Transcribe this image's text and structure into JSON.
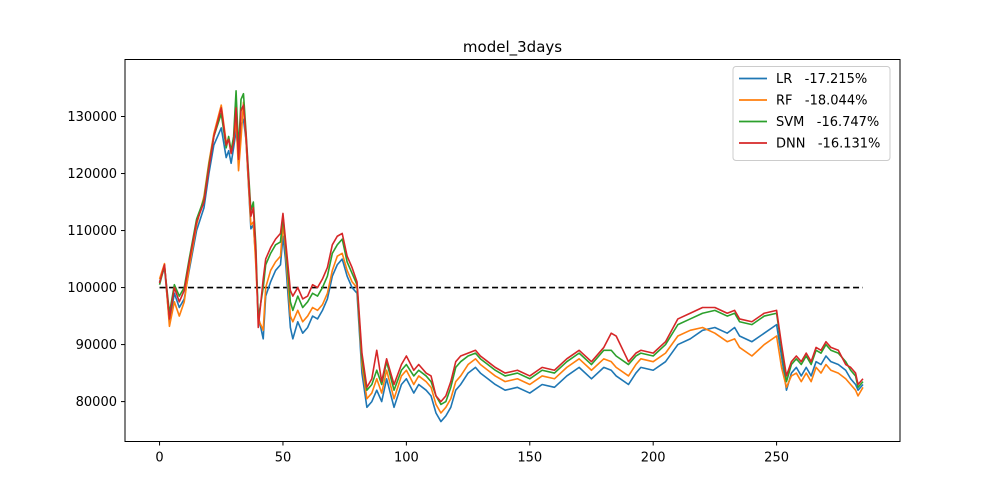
{
  "chart_data": {
    "type": "line",
    "title": "model_3days",
    "xlabel": "",
    "ylabel": "",
    "xlim": [
      -14,
      300
    ],
    "ylim": [
      73000,
      140000
    ],
    "xticks": [
      0,
      50,
      100,
      150,
      200,
      250
    ],
    "yticks": [
      80000,
      90000,
      100000,
      110000,
      120000,
      130000
    ],
    "grid": false,
    "legend_position": "top-right",
    "baseline": {
      "y": 100000,
      "x_range": [
        0,
        285
      ],
      "style": "dashed",
      "color": "#000000"
    },
    "series": [
      {
        "name": "LR   -17.215%",
        "color": "#1f77b4",
        "x": [
          0,
          2,
          4,
          6,
          8,
          10,
          12,
          15,
          18,
          20,
          22,
          25,
          27,
          28,
          29,
          30,
          31,
          32,
          33,
          34,
          35,
          37,
          38,
          39,
          40,
          42,
          43,
          45,
          47,
          49,
          50,
          51,
          53,
          54,
          56,
          58,
          60,
          62,
          64,
          66,
          68,
          70,
          72,
          74,
          76,
          78,
          80,
          82,
          84,
          86,
          88,
          90,
          92,
          95,
          98,
          100,
          103,
          105,
          108,
          110,
          112,
          114,
          116,
          118,
          120,
          122,
          125,
          128,
          130,
          133,
          136,
          140,
          145,
          150,
          155,
          160,
          165,
          170,
          175,
          180,
          183,
          185,
          190,
          193,
          195,
          200,
          205,
          210,
          215,
          220,
          225,
          230,
          233,
          235,
          240,
          245,
          250,
          252,
          254,
          256,
          258,
          260,
          262,
          264,
          266,
          268,
          270,
          272,
          275,
          278,
          280,
          282,
          283,
          285
        ],
        "values": [
          101000,
          103500,
          93800,
          99000,
          96500,
          98000,
          103000,
          110000,
          114000,
          120000,
          125000,
          128000,
          122800,
          124000,
          121800,
          124500,
          127500,
          123500,
          128500,
          129500,
          126000,
          110300,
          111000,
          105000,
          95000,
          91000,
          98500,
          101000,
          103000,
          104000,
          109000,
          105000,
          93000,
          91000,
          94000,
          92000,
          93000,
          95000,
          94500,
          96000,
          98000,
          102000,
          104000,
          105000,
          102000,
          100000,
          99000,
          85000,
          79000,
          80000,
          82000,
          80000,
          84000,
          79000,
          83000,
          84000,
          81500,
          83000,
          82000,
          81000,
          78000,
          76500,
          77500,
          79000,
          82000,
          83000,
          85000,
          86000,
          85000,
          84000,
          83000,
          82000,
          82500,
          81500,
          83000,
          82500,
          84500,
          86000,
          84000,
          86000,
          85500,
          84500,
          83000,
          85000,
          86000,
          85500,
          87000,
          90000,
          91000,
          92500,
          93000,
          92000,
          93000,
          91500,
          90500,
          92000,
          93500,
          88000,
          82000,
          85000,
          86000,
          84500,
          86000,
          84500,
          87000,
          86500,
          88000,
          87000,
          86500,
          85500,
          84000,
          83000,
          82000,
          83000
        ]
      },
      {
        "name": "RF   -18.044%",
        "color": "#ff7f0e",
        "x": [
          0,
          2,
          4,
          6,
          8,
          10,
          12,
          15,
          18,
          20,
          22,
          25,
          27,
          28,
          29,
          30,
          31,
          32,
          33,
          34,
          35,
          37,
          38,
          39,
          40,
          42,
          43,
          45,
          47,
          49,
          50,
          51,
          53,
          54,
          56,
          58,
          60,
          62,
          64,
          66,
          68,
          70,
          72,
          74,
          76,
          78,
          80,
          82,
          84,
          86,
          88,
          90,
          92,
          95,
          98,
          100,
          103,
          105,
          108,
          110,
          112,
          114,
          116,
          118,
          120,
          122,
          125,
          128,
          130,
          133,
          136,
          140,
          145,
          150,
          155,
          160,
          165,
          170,
          175,
          180,
          183,
          185,
          190,
          193,
          195,
          200,
          205,
          210,
          215,
          220,
          225,
          230,
          233,
          235,
          240,
          245,
          250,
          252,
          254,
          256,
          258,
          260,
          262,
          264,
          266,
          268,
          270,
          272,
          275,
          278,
          280,
          282,
          283,
          285
        ],
        "values": [
          101500,
          104200,
          93200,
          97500,
          95000,
          97500,
          103500,
          111000,
          116000,
          122000,
          127000,
          132000,
          125500,
          126000,
          124000,
          125500,
          129500,
          120500,
          126000,
          132500,
          126000,
          111000,
          111500,
          104000,
          94500,
          92500,
          100000,
          103000,
          104500,
          105500,
          111000,
          107000,
          95000,
          94000,
          96000,
          94000,
          95000,
          96500,
          96000,
          97000,
          99000,
          103000,
          105500,
          106000,
          103000,
          101000,
          100000,
          86500,
          80500,
          81500,
          84000,
          81500,
          85500,
          80500,
          84500,
          85500,
          83000,
          84500,
          83500,
          82500,
          79500,
          78000,
          79000,
          80500,
          83500,
          84500,
          86500,
          87500,
          86500,
          85500,
          84500,
          83500,
          84000,
          83000,
          84500,
          84000,
          86000,
          87500,
          85500,
          87500,
          87000,
          86000,
          84500,
          86500,
          87500,
          87000,
          88500,
          91500,
          92500,
          93000,
          92000,
          90500,
          91000,
          89500,
          88000,
          90000,
          91500,
          86000,
          82500,
          84500,
          85000,
          83500,
          85000,
          83500,
          86000,
          85000,
          86500,
          85500,
          85000,
          84000,
          83000,
          82000,
          81000,
          82500
        ]
      },
      {
        "name": "SVM   -16.747%",
        "color": "#2ca02c",
        "x": [
          0,
          2,
          4,
          6,
          8,
          10,
          12,
          15,
          18,
          20,
          22,
          25,
          27,
          28,
          29,
          30,
          31,
          32,
          33,
          34,
          35,
          37,
          38,
          39,
          40,
          42,
          43,
          45,
          47,
          49,
          50,
          51,
          53,
          54,
          56,
          58,
          60,
          62,
          64,
          66,
          68,
          70,
          72,
          74,
          76,
          78,
          80,
          82,
          84,
          86,
          88,
          90,
          92,
          95,
          98,
          100,
          103,
          105,
          108,
          110,
          112,
          114,
          116,
          118,
          120,
          122,
          125,
          128,
          130,
          133,
          136,
          140,
          145,
          150,
          155,
          160,
          165,
          170,
          175,
          180,
          183,
          185,
          190,
          193,
          195,
          200,
          205,
          210,
          215,
          220,
          225,
          230,
          233,
          235,
          240,
          245,
          250,
          252,
          254,
          256,
          258,
          260,
          262,
          264,
          266,
          268,
          270,
          272,
          275,
          278,
          280,
          282,
          283,
          285
        ],
        "values": [
          100500,
          103800,
          95500,
          100500,
          98500,
          100000,
          105000,
          112000,
          115500,
          121500,
          126500,
          130500,
          124500,
          126500,
          124000,
          126500,
          134500,
          124000,
          133000,
          134000,
          127500,
          113500,
          115000,
          107500,
          94500,
          100000,
          104000,
          106000,
          107500,
          108000,
          112500,
          108000,
          97500,
          96000,
          98500,
          96500,
          97500,
          99000,
          98500,
          100000,
          102000,
          106000,
          107500,
          108500,
          104500,
          102500,
          100500,
          87500,
          82000,
          83000,
          85500,
          83000,
          87000,
          82000,
          85500,
          86500,
          84500,
          85500,
          84500,
          83500,
          81000,
          79500,
          80000,
          82500,
          86000,
          87000,
          88000,
          88500,
          87500,
          86500,
          85500,
          84500,
          85000,
          84000,
          85500,
          85000,
          87000,
          88500,
          86500,
          89000,
          89000,
          88000,
          86500,
          88000,
          88500,
          88000,
          90000,
          93500,
          94500,
          95500,
          96000,
          95000,
          95500,
          94000,
          93500,
          95000,
          95500,
          89500,
          83500,
          86500,
          87500,
          86500,
          88000,
          86500,
          89000,
          88500,
          90000,
          89000,
          88500,
          87000,
          85500,
          84500,
          82500,
          83500
        ]
      },
      {
        "name": "DNN   -16.131%",
        "color": "#d62728",
        "x": [
          0,
          2,
          4,
          6,
          8,
          10,
          12,
          15,
          18,
          20,
          22,
          25,
          27,
          28,
          29,
          30,
          31,
          32,
          33,
          34,
          35,
          37,
          38,
          39,
          40,
          42,
          43,
          45,
          47,
          49,
          50,
          51,
          53,
          54,
          56,
          58,
          60,
          62,
          64,
          66,
          68,
          70,
          72,
          74,
          76,
          78,
          80,
          82,
          84,
          86,
          88,
          90,
          92,
          95,
          98,
          100,
          103,
          105,
          108,
          110,
          112,
          114,
          116,
          118,
          120,
          122,
          125,
          128,
          130,
          133,
          136,
          140,
          145,
          150,
          155,
          160,
          165,
          170,
          175,
          180,
          183,
          185,
          190,
          193,
          195,
          200,
          205,
          210,
          215,
          220,
          225,
          230,
          233,
          235,
          240,
          245,
          250,
          252,
          254,
          256,
          258,
          260,
          262,
          264,
          266,
          268,
          270,
          272,
          275,
          278,
          280,
          282,
          283,
          285
        ],
        "values": [
          100800,
          104000,
          94500,
          100000,
          97500,
          99500,
          104500,
          111500,
          115000,
          121000,
          126500,
          131500,
          125000,
          126000,
          123500,
          125500,
          131500,
          122500,
          131000,
          132000,
          127000,
          112500,
          114000,
          106500,
          93000,
          101500,
          105000,
          107000,
          108500,
          109500,
          113000,
          108500,
          99500,
          98500,
          100000,
          98000,
          98500,
          100500,
          100000,
          101500,
          103500,
          107500,
          109000,
          109500,
          105500,
          103500,
          101000,
          88500,
          82500,
          84000,
          89000,
          83500,
          87500,
          83000,
          86500,
          88000,
          85500,
          86500,
          85000,
          84500,
          81000,
          80000,
          81000,
          83500,
          87000,
          88000,
          88500,
          89000,
          88000,
          87000,
          86000,
          85000,
          85500,
          84500,
          86000,
          85500,
          87500,
          89000,
          87000,
          89500,
          92000,
          91500,
          87000,
          88500,
          89000,
          88500,
          90500,
          94500,
          95500,
          96500,
          96500,
          95500,
          96000,
          94500,
          94000,
          95500,
          96000,
          90000,
          84500,
          87000,
          88000,
          87000,
          88500,
          87000,
          89500,
          89000,
          90500,
          89500,
          89000,
          86500,
          86000,
          85000,
          83000,
          84000
        ]
      }
    ]
  }
}
